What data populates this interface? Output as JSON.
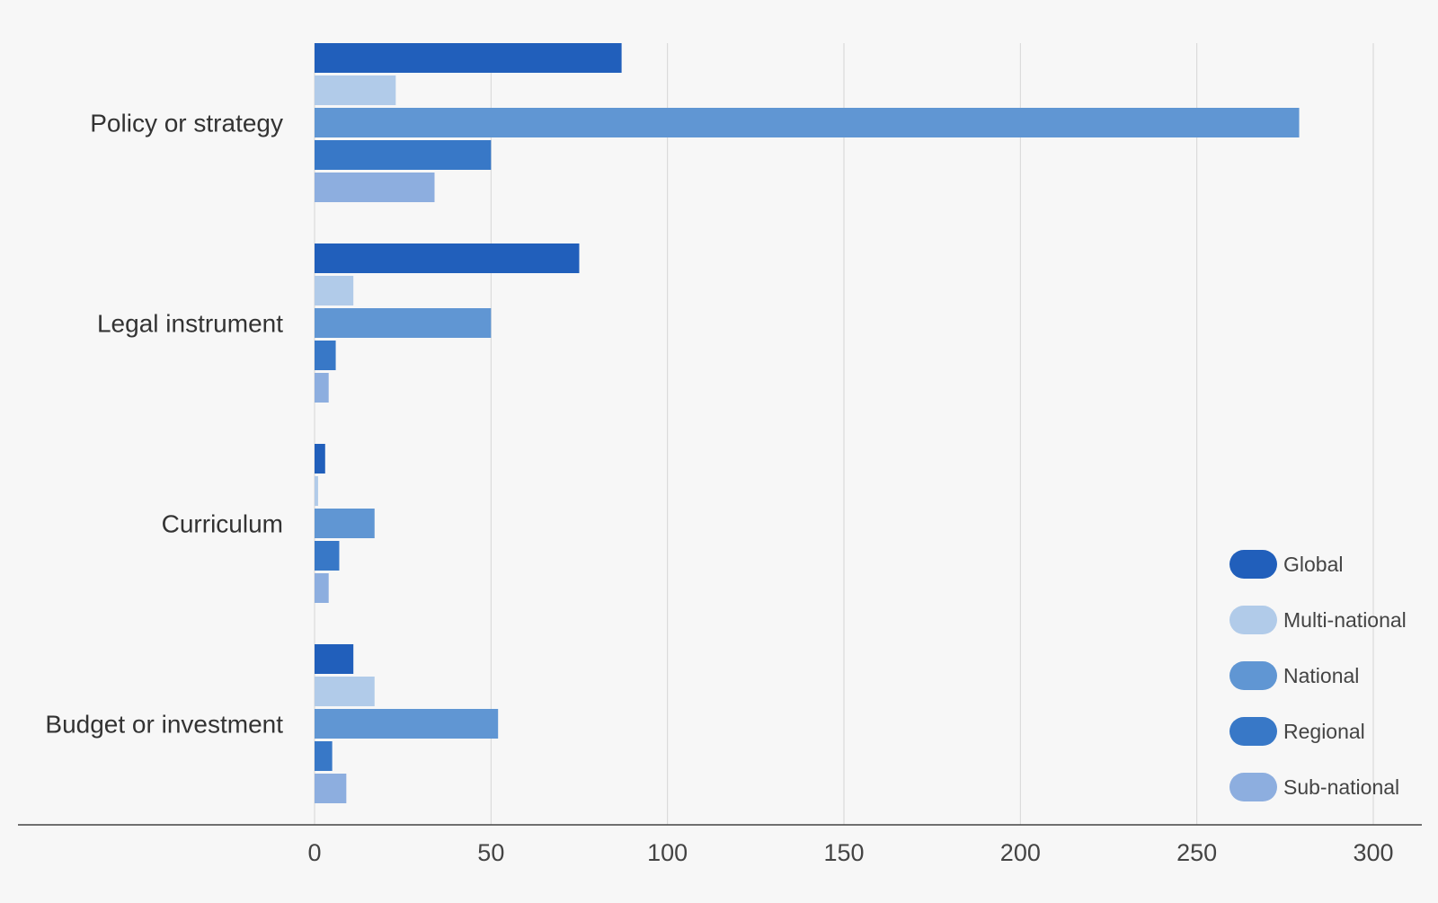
{
  "chart_data": {
    "type": "bar",
    "orientation": "horizontal",
    "categories": [
      "Policy or strategy",
      "Legal instrument",
      "Curriculum",
      "Budget or investment"
    ],
    "series": [
      {
        "name": "Global",
        "color": "#215fbb",
        "values": [
          87,
          75,
          3,
          11
        ]
      },
      {
        "name": "Multi-national",
        "color": "#b1cbe9",
        "values": [
          23,
          11,
          1,
          17
        ]
      },
      {
        "name": "National",
        "color": "#6096d3",
        "values": [
          279,
          50,
          17,
          52
        ]
      },
      {
        "name": "Regional",
        "color": "#3878c7",
        "values": [
          50,
          6,
          7,
          5
        ]
      },
      {
        "name": "Sub-national",
        "color": "#8daedf",
        "values": [
          34,
          4,
          4,
          9
        ]
      }
    ],
    "xlim": [
      0,
      300
    ],
    "xticks": [
      0,
      50,
      100,
      150,
      200,
      250,
      300
    ],
    "grid": true,
    "legend_position": "bottom-right",
    "title": "",
    "xlabel": "",
    "ylabel": ""
  }
}
